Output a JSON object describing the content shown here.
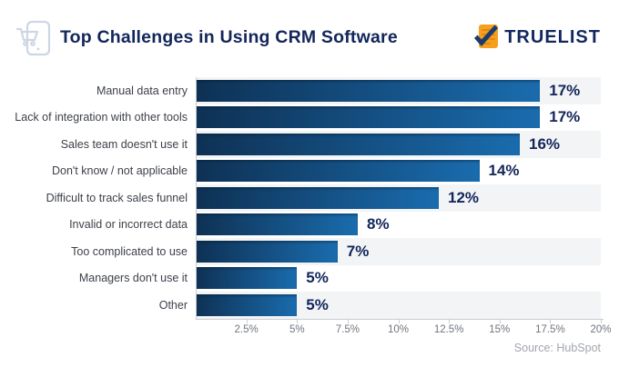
{
  "header": {
    "title": "Top Challenges in Using CRM Software",
    "brand": "TRUELIST"
  },
  "icons": {
    "cart-device-icon": "outlined smartphone with shopping cart, light blue-gray",
    "clipboard-check-icon": "orange list page with dark navy checkmark"
  },
  "colors": {
    "title_navy": "#12265a",
    "bar_gradient_start": "#0e3154",
    "bar_gradient_end": "#1a6cae",
    "stripe": "#f3f4f6",
    "axis_line": "#c9ccd1",
    "tick_text": "#70757d",
    "label_text": "#3d4149",
    "source_text": "#a1a5ac",
    "logo_orange": "#f79f1f"
  },
  "chart_data": {
    "type": "bar",
    "orientation": "horizontal",
    "title": "Top Challenges in Using CRM Software",
    "categories": [
      "Manual data entry",
      "Lack of integration with other tools",
      "Sales team doesn't use it",
      "Don't know / not applicable",
      "Difficult to track sales funnel",
      "Invalid or incorrect data",
      "Too complicated to use",
      "Managers don't use it",
      "Other"
    ],
    "values": [
      17,
      17,
      16,
      14,
      12,
      8,
      7,
      5,
      5
    ],
    "value_labels": [
      "17%",
      "17%",
      "16%",
      "14%",
      "12%",
      "8%",
      "7%",
      "5%",
      "5%"
    ],
    "xlabel": "",
    "ylabel": "",
    "xlim": [
      0,
      20
    ],
    "x_tick_values": [
      2.5,
      5,
      7.5,
      10,
      12.5,
      15,
      17.5,
      20
    ],
    "x_tick_labels": [
      "2.5%",
      "5%",
      "7.5%",
      "10%",
      "12.5%",
      "15%",
      "17.5%",
      "20%"
    ],
    "grid": false,
    "legend": null,
    "row_stripes": "odd rows shaded"
  },
  "footer": {
    "source": "Source: HubSpot"
  }
}
